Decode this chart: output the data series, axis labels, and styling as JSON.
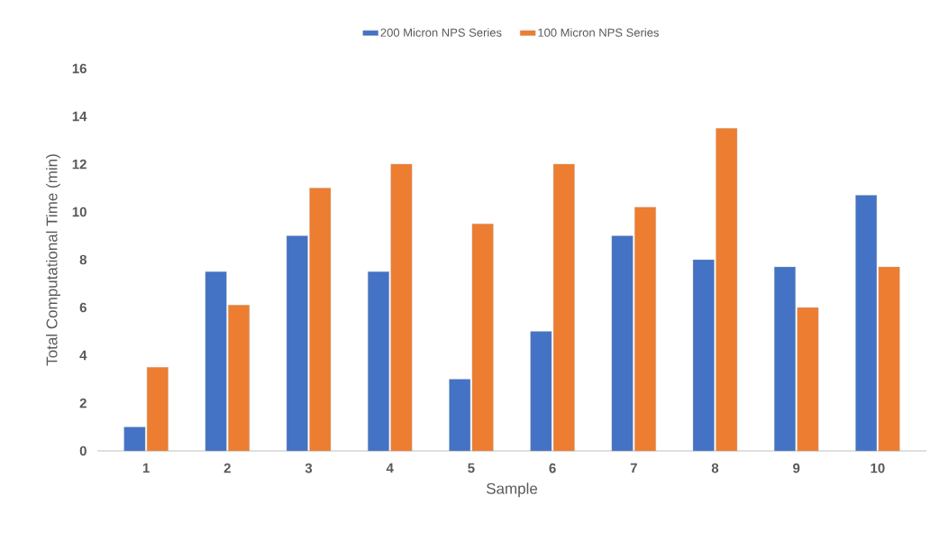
{
  "chart_data": {
    "type": "bar",
    "xlabel": "Sample",
    "ylabel": "Total Computational Time (min)",
    "categories": [
      "1",
      "2",
      "3",
      "4",
      "5",
      "6",
      "7",
      "8",
      "9",
      "10"
    ],
    "series": [
      {
        "name": "200 Micron NPS Series",
        "color": "#4472c4",
        "values": [
          1.0,
          7.5,
          9.0,
          7.5,
          3.0,
          5.0,
          9.0,
          8.0,
          7.7,
          10.7
        ]
      },
      {
        "name": "100 Micron NPS Series",
        "color": "#ed7d31",
        "values": [
          3.5,
          6.1,
          11.0,
          12.0,
          9.5,
          12.0,
          10.2,
          13.5,
          6.0,
          7.7
        ]
      }
    ],
    "ylim": [
      0,
      16
    ],
    "yticks": [
      0,
      2,
      4,
      6,
      8,
      10,
      12,
      14,
      16
    ],
    "grid": false,
    "legend": "top"
  }
}
